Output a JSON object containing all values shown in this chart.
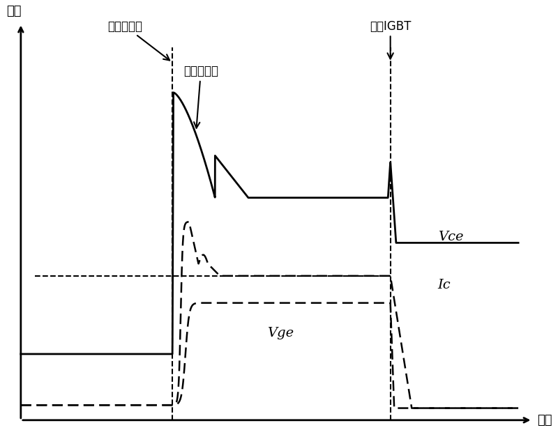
{
  "xlabel": "时间",
  "ylabel": "幅值",
  "t1": 3.2,
  "t2": 7.8,
  "label_vce": "Vce",
  "label_ic": "Ic",
  "label_vge": "Vge",
  "ann_overcurrent": "过电流故障",
  "ann_desaturation": "进入退饱和",
  "ann_turnoff": "关断IGBT",
  "bg_color": "#ffffff",
  "xlim": [
    -0.3,
    11.0
  ],
  "ylim": [
    -0.8,
    13.0
  ]
}
